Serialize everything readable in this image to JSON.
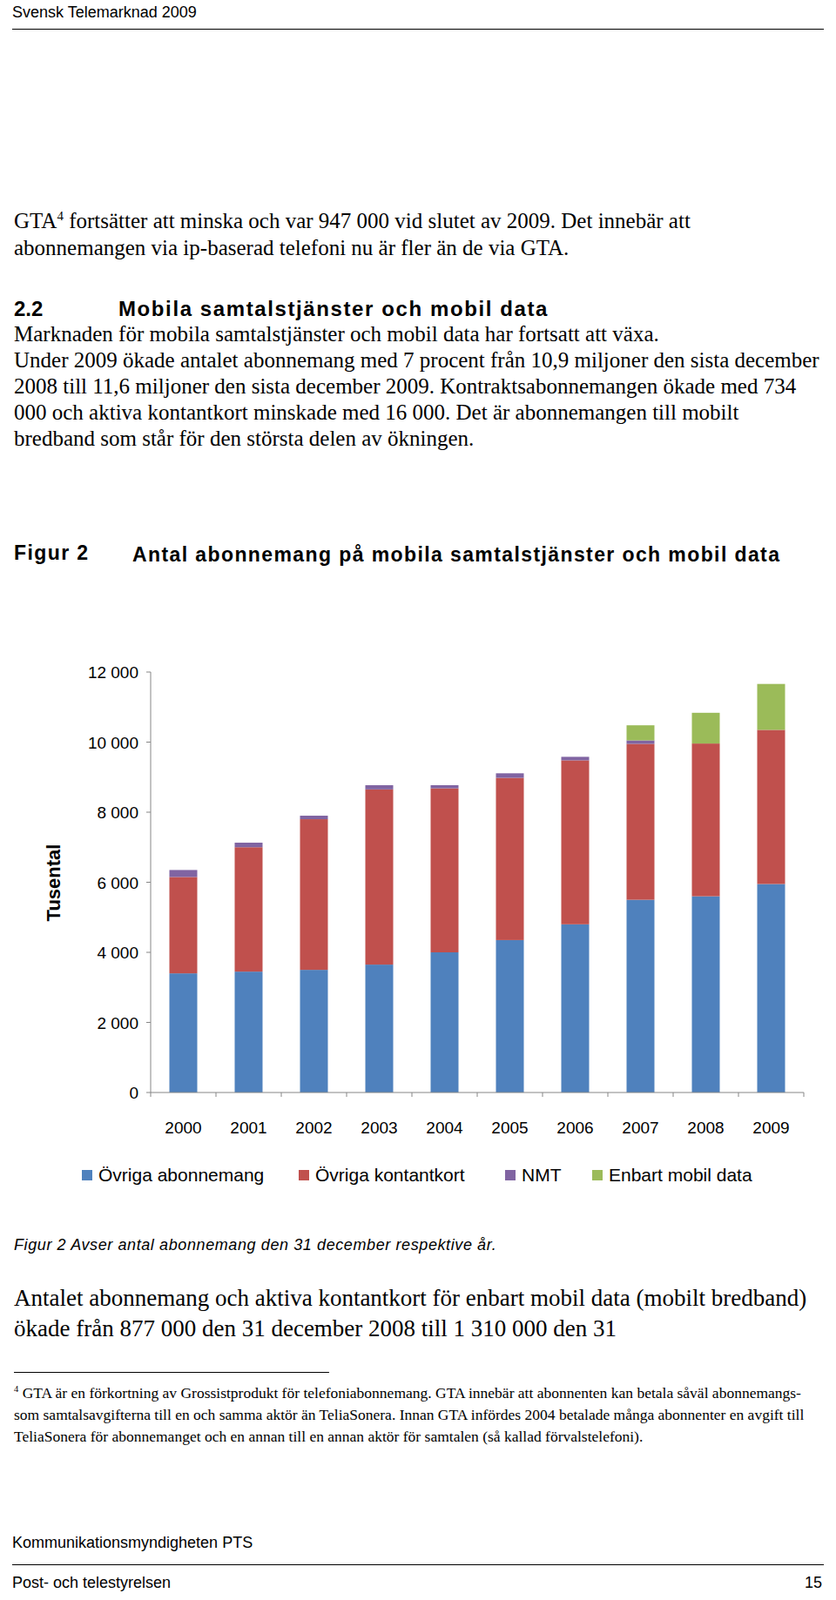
{
  "header": {
    "title": "Svensk Telemarknad 2009"
  },
  "intro": {
    "before": "GTA",
    "sup": "4",
    "after": " fortsätter att minska och var 947 000 vid slutet av 2009. Det innebär att abonnemangen via ip-baserad telefoni nu är fler än de via GTA."
  },
  "section": {
    "number": "2.2",
    "title": "Mobila samtalstjänster och mobil data"
  },
  "paragraphs": [
    "Marknaden för mobila samtalstjänster och mobil data har fortsatt att växa.",
    "Under 2009 ökade antalet abonnemang med 7 procent från 10,9 miljoner den sista december 2008 till 11,6 miljoner den sista december 2009. Kontraktsabonnemangen ökade med 734 000 och aktiva kontantkort minskade med 16 000. Det är abonnemangen till mobilt bredband som står för den största delen av ökningen."
  ],
  "figure": {
    "label": "Figur 2",
    "note": "Figur 2 Avser antal abonnemang den 31 december respektive år."
  },
  "chart_data": {
    "type": "bar",
    "title": "Antal abonnemang på mobila samtalstjänster och mobil data",
    "y_label": "Tusental",
    "stacked": true,
    "grid": false,
    "legend": "bottom",
    "categories": [
      "2000",
      "2001",
      "2002",
      "2003",
      "2004",
      "2005",
      "2006",
      "2007",
      "2008",
      "2009"
    ],
    "series": [
      {
        "name": "Övriga abonnemang",
        "color": "#4f81bd",
        "values": [
          3400,
          3450,
          3500,
          3650,
          4000,
          4350,
          4800,
          5500,
          5600,
          5950
        ]
      },
      {
        "name": "Övriga kontantkort",
        "color": "#c0504d",
        "values": [
          2750,
          3550,
          4300,
          5000,
          4680,
          4630,
          4680,
          4450,
          4360,
          4400
        ]
      },
      {
        "name": "NMT",
        "color": "#8064a2",
        "values": [
          200,
          130,
          100,
          120,
          90,
          130,
          100,
          100,
          0,
          0
        ]
      },
      {
        "name": "Enbart mobil data",
        "color": "#9bbb59",
        "values": [
          0,
          0,
          0,
          0,
          0,
          0,
          0,
          430,
          877,
          1310
        ]
      }
    ],
    "ylim": [
      0,
      12000
    ],
    "yticks": [
      0,
      {
        "value": 2000,
        "label": "2 000"
      },
      {
        "value": 4000,
        "label": "4 000"
      },
      {
        "value": 6000,
        "label": "6 000"
      },
      {
        "value": 8000,
        "label": "8 000"
      },
      {
        "value": 10000,
        "label": "10 000"
      },
      {
        "value": 12000,
        "label": "12 000"
      }
    ]
  },
  "after_text": "Antalet abonnemang och aktiva kontantkort för enbart mobil data (mobilt bredband) ökade från 877 000 den 31 december 2008 till 1 310 000 den 31",
  "footnote": {
    "number": "4",
    "text": "GTA är en förkortning av Grossistprodukt för telefoniabonnemang. GTA innebär att abonnenten kan betala såväl abonnemangs- som samtalsavgifterna till en och samma aktör än TeliaSonera. Innan GTA infördes 2004 betalade många abonnenter en avgift till TeliaSonera för abonnemanget och en annan till en annan aktör för samtalen (så kallad förvalstelefoni)."
  },
  "footer": {
    "organization": "Kommunikationsmyndigheten PTS",
    "publisher": "Post- och telestyrelsen",
    "page": "15"
  }
}
